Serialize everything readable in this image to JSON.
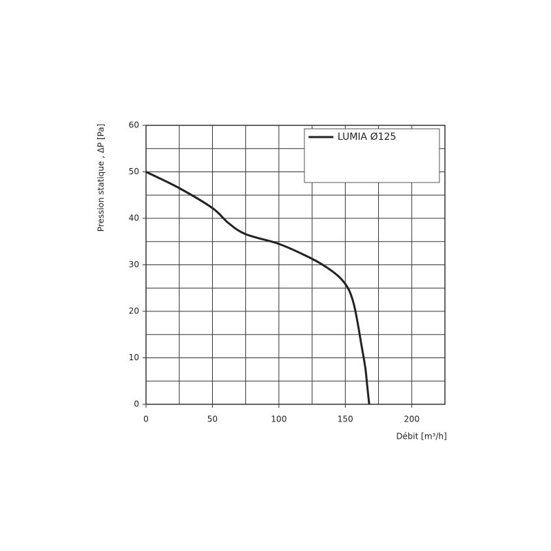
{
  "chart_data": {
    "type": "line",
    "x_label": "Débit [m³/h]",
    "y_label": "Pression statique , ΔP [Pa]",
    "xlim": [
      0,
      225
    ],
    "ylim": [
      0,
      60
    ],
    "xticks": [
      0,
      50,
      100,
      150,
      200
    ],
    "yticks": [
      0,
      10,
      20,
      30,
      40,
      50,
      60
    ],
    "x_minor_ticks": [
      25,
      75,
      125,
      175
    ],
    "y_minor_ticks": [
      5,
      15,
      25,
      35,
      45,
      55
    ],
    "grid": true,
    "legend": "upper right",
    "series": [
      {
        "name": "LUMIA Ø125",
        "color": "#222222",
        "x": [
          0,
          25,
          50,
          62,
          75,
          100,
          120,
          133,
          145,
          152,
          156,
          159,
          162,
          165,
          166.5,
          168
        ],
        "values": [
          50,
          46.5,
          42.2,
          39,
          36.6,
          34.5,
          32,
          30,
          27.5,
          25,
          22,
          18,
          13,
          8,
          4,
          0
        ]
      }
    ]
  }
}
